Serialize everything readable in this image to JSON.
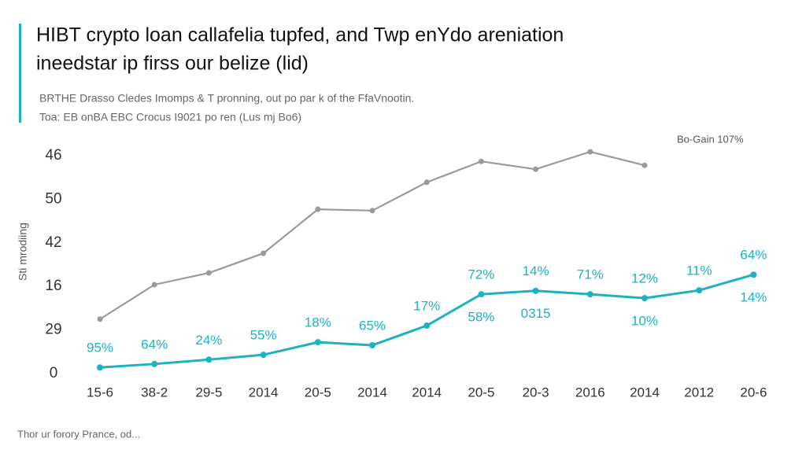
{
  "chart_data": {
    "type": "line",
    "title": [
      "HIBT crypto loan callafelia tupfed, and Twp enYdo areniation",
      "ineedstar ip firss our belize (lid)"
    ],
    "subtitle": [
      "BRTHE Drasso Cledes Imomps & T pronning, out po par k of the FfaVnootin.",
      "Toa: EB onBA EBC Crocus I9021 po ren (Lus mj Bo6)"
    ],
    "y_label": "Sti mrodiing",
    "note": "Bo-Gain 107%",
    "footer": "Thor ur forory Prance, od...",
    "categories": [
      "15-6",
      "38-2",
      "29-5",
      "2014",
      "20-5",
      "2014",
      "2014",
      "20-5",
      "20-3",
      "2016",
      "2014",
      "2012",
      "20-6"
    ],
    "series": [
      {
        "color": "#9a9a9a",
        "values": [
          12.5,
          20.4,
          23.1,
          27.6,
          37.7,
          37.4,
          43.9,
          48.7,
          46.9,
          50.9,
          47.8,
          null,
          null
        ]
      },
      {
        "color": "#1cb2bf",
        "values": [
          1.4,
          2.2,
          3.2,
          4.3,
          7.2,
          6.5,
          11.0,
          18.2,
          19.0,
          18.2,
          17.3,
          19.1,
          22.7
        ],
        "labels_above": [
          "95%",
          "64%",
          "24%",
          "55%",
          "18%",
          "65%",
          "17%",
          "72%",
          "14%",
          "71%",
          "12%",
          "11%",
          "64%"
        ],
        "labels_below": [
          null,
          null,
          null,
          null,
          null,
          null,
          null,
          "58%",
          "0315",
          null,
          "10%",
          null,
          "14%"
        ]
      }
    ],
    "ylim": [
      0,
      52
    ],
    "yticks": [
      0,
      {
        "value": 10,
        "label": "29"
      },
      {
        "value": 20,
        "label": "16"
      },
      {
        "value": 30,
        "label": "42"
      },
      50,
      {
        "value": 50,
        "label": "46"
      }
    ],
    "grid": false
  }
}
